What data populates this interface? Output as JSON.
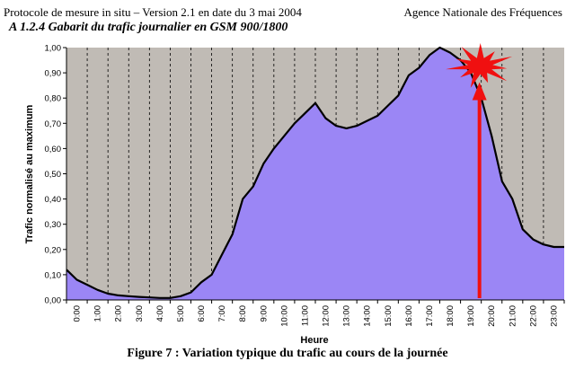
{
  "header": {
    "left": "Protocole de mesure in situ – Version 2.1 en date du 3 mai 2004",
    "right": "Agence Nationale des Fréquences",
    "section_title": "A 1.2.4 Gabarit du trafic journalier en GSM 900/1800"
  },
  "caption": "Figure 7 : Variation typique du trafic au cours de la journée",
  "colors": {
    "plot_background": "#c0bbb5",
    "area_fill": "#9b86f5",
    "line": "#000000",
    "arrow": "#f01010",
    "burst": "#f01010"
  },
  "chart_data": {
    "type": "area",
    "xlabel": "Heure",
    "ylabel": "Trafic normalisé au maximum",
    "xlim": [
      0,
      24
    ],
    "ylim": [
      0,
      1
    ],
    "grid": "vertical dashed",
    "x_tick_labels": [
      "0:00",
      "1:00",
      "2:00",
      "3:00",
      "4:00",
      "5:00",
      "6:00",
      "7:00",
      "8:00",
      "9:00",
      "10:00",
      "11:00",
      "12:00",
      "13:00",
      "14:00",
      "15:00",
      "16:00",
      "17:00",
      "18:00",
      "19:00",
      "20:00",
      "21:00",
      "22:00",
      "23:00"
    ],
    "y_tick_labels": [
      "0,00",
      "0,10",
      "0,20",
      "0,30",
      "0,40",
      "0,50",
      "0,60",
      "0,70",
      "0,80",
      "0,90",
      "1,00"
    ],
    "x": [
      0,
      0.5,
      1,
      1.5,
      2,
      2.5,
      3,
      3.5,
      4,
      4.5,
      5,
      5.5,
      6,
      6.5,
      7,
      7.5,
      8,
      8.5,
      9,
      9.5,
      10,
      10.5,
      11,
      11.5,
      12,
      12.5,
      13,
      13.5,
      14,
      14.5,
      15,
      15.5,
      16,
      16.5,
      17,
      17.5,
      18,
      18.5,
      19,
      19.5,
      20,
      20.5,
      21,
      21.5,
      22,
      22.5,
      23,
      23.5,
      24
    ],
    "y": [
      0.12,
      0.08,
      0.06,
      0.04,
      0.025,
      0.018,
      0.015,
      0.012,
      0.01,
      0.008,
      0.008,
      0.015,
      0.03,
      0.07,
      0.1,
      0.18,
      0.26,
      0.4,
      0.45,
      0.54,
      0.6,
      0.65,
      0.7,
      0.74,
      0.78,
      0.72,
      0.69,
      0.68,
      0.69,
      0.71,
      0.73,
      0.77,
      0.81,
      0.89,
      0.92,
      0.97,
      1.0,
      0.98,
      0.95,
      0.9,
      0.8,
      0.65,
      0.47,
      0.4,
      0.28,
      0.24,
      0.22,
      0.21,
      0.21
    ],
    "annotation": {
      "type": "arrow with burst marker",
      "x": 20,
      "y_from": 0.0,
      "y_to": 0.92
    }
  }
}
